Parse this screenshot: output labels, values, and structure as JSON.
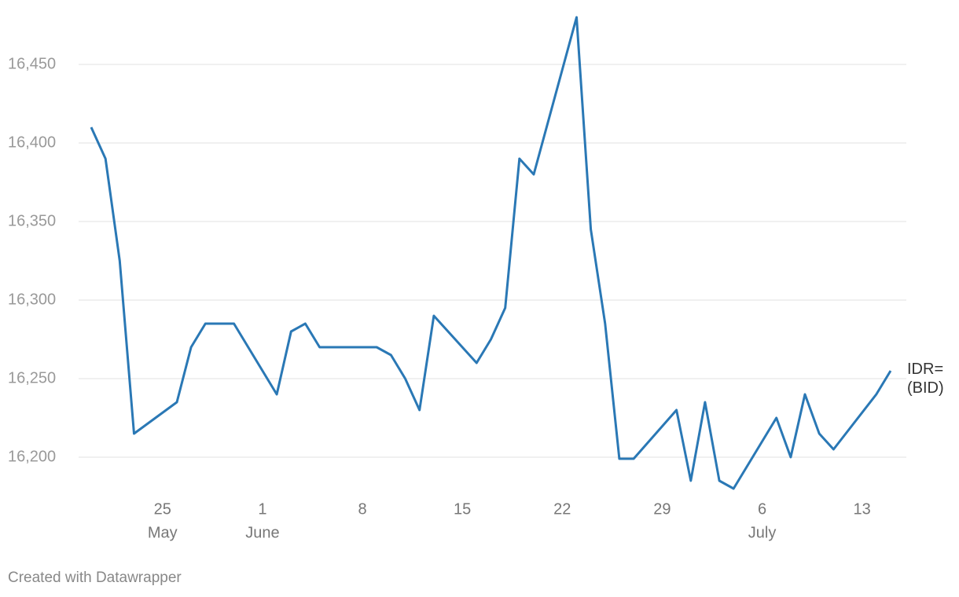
{
  "chart_data": {
    "type": "line",
    "x": [
      "May 20",
      "May 21",
      "May 22",
      "May 23",
      "May 26",
      "May 27",
      "May 28",
      "May 29",
      "May 30",
      "June 2",
      "June 3",
      "June 4",
      "June 5",
      "June 9",
      "June 10",
      "June 11",
      "June 12",
      "June 13",
      "June 16",
      "June 17",
      "June 18",
      "June 19",
      "June 20",
      "June 23",
      "June 24",
      "June 25",
      "June 26",
      "June 27",
      "June 30",
      "July 1",
      "July 2",
      "July 3",
      "July 4",
      "July 7",
      "July 8",
      "July 9",
      "July 10",
      "July 11",
      "July 14",
      "July 15"
    ],
    "series": [
      {
        "name": "IDR= (BID)",
        "color": "#2a78b5",
        "values": [
          16410,
          16390,
          16325,
          16215,
          16235,
          16270,
          16285,
          16285,
          16285,
          16240,
          16280,
          16285,
          16270,
          16270,
          16265,
          16250,
          16230,
          16290,
          16260,
          16275,
          16295,
          16390,
          16380,
          16480,
          16345,
          16285,
          16199,
          16199,
          16230,
          16185,
          16235,
          16185,
          16180,
          16225,
          16200,
          16240,
          16215,
          16205,
          16240,
          16255
        ]
      }
    ],
    "xlim": [
      "May 20",
      "July 15"
    ],
    "xticks": [
      {
        "value": "May 25",
        "label": "25"
      },
      {
        "value": "June 1",
        "label": "1"
      },
      {
        "value": "June 8",
        "label": "8"
      },
      {
        "value": "June 15",
        "label": "15"
      },
      {
        "value": "June 22",
        "label": "22"
      },
      {
        "value": "June 29",
        "label": "29"
      },
      {
        "value": "July 6",
        "label": "6"
      },
      {
        "value": "July 13",
        "label": "13"
      }
    ],
    "xtick_months": [
      {
        "value": "May 25",
        "label": "May"
      },
      {
        "value": "June 1",
        "label": "June"
      },
      {
        "value": "July 6",
        "label": "July"
      }
    ],
    "ylim": [
      16180,
      16480
    ],
    "yticks": [
      {
        "value": 16200,
        "label": "16,200"
      },
      {
        "value": 16250,
        "label": "16,250"
      },
      {
        "value": 16300,
        "label": "16,300"
      },
      {
        "value": 16350,
        "label": "16,350"
      },
      {
        "value": 16400,
        "label": "16,400"
      },
      {
        "value": 16450,
        "label": "16,450"
      }
    ],
    "grid": true,
    "footer": "Created with Datawrapper"
  }
}
